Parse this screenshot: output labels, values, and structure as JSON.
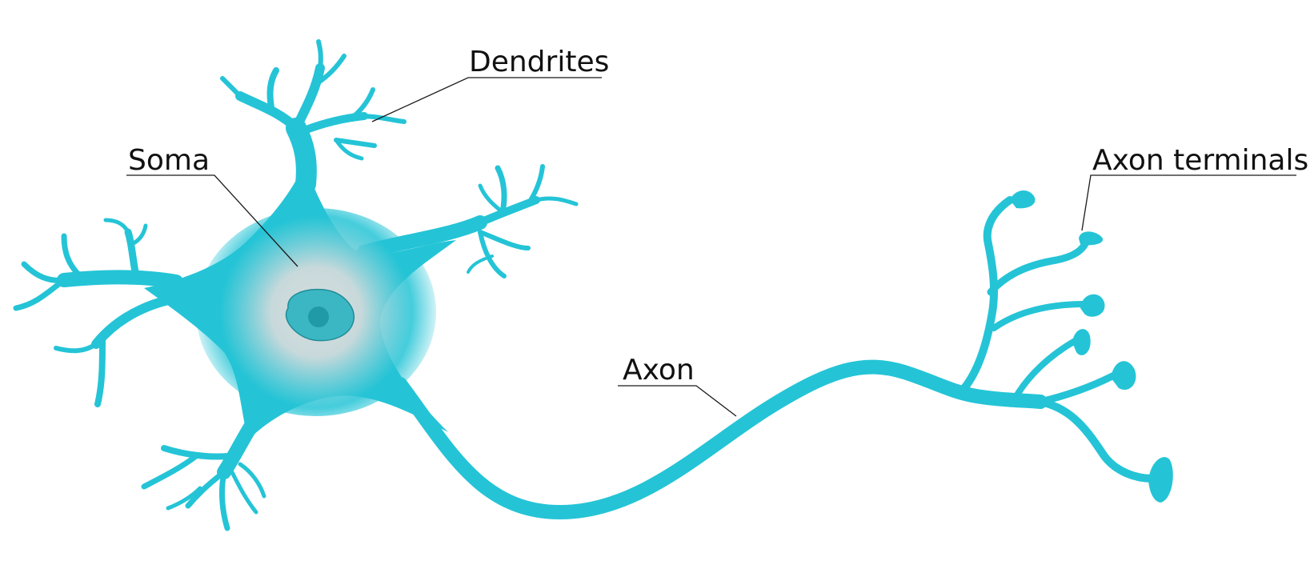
{
  "labels": {
    "dendrites": "Dendrites",
    "soma": "Soma",
    "axon": "Axon",
    "axon_terminals": "Axon terminals"
  },
  "colors": {
    "neuron": "#24c4d6",
    "soma_glow": "#d6dcdd",
    "nucleus": "#3bb7c4",
    "nucleus_outline": "#1f8c96",
    "nucleolus": "#1f9aa6",
    "leader": "#1a1a1a",
    "text": "#111111"
  }
}
